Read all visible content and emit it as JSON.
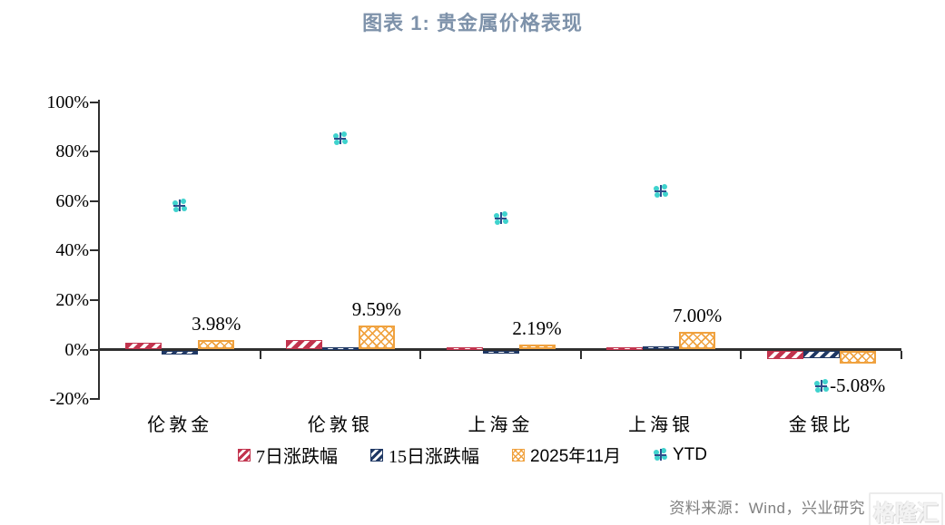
{
  "title": "图表 1:  贵金属价格表现",
  "source": {
    "text": "资料来源：Wind，兴业研究"
  },
  "watermark": {
    "text": "格隆汇"
  },
  "colors": {
    "title": "#7e92aa",
    "series_7d": "#c2344e",
    "series_15d": "#1f3864",
    "series_nov": "#f0a23f",
    "series_ytd": "#3fd2cd",
    "axis": "#2f2f2f",
    "source_text": "#808080"
  },
  "chart_data": {
    "type": "bar",
    "title": "图表 1:  贵金属价格表现",
    "categories": [
      "伦敦金",
      "伦敦银",
      "上海金",
      "上海银",
      "金银比"
    ],
    "series": [
      {
        "name": "7日涨跌幅",
        "type": "bar",
        "pattern": "diagonal-hatch",
        "color": "#c2344e",
        "values": [
          2.7,
          3.8,
          0.8,
          0.5,
          -3.3
        ]
      },
      {
        "name": "15日涨跌幅",
        "type": "bar",
        "pattern": "diagonal-hatch",
        "color": "#1f3864",
        "values": [
          -1.6,
          0.4,
          -1.2,
          1.2,
          -2.8
        ]
      },
      {
        "name": "2025年11月",
        "type": "bar",
        "pattern": "crosshatch",
        "color": "#f0a23f",
        "values": [
          3.98,
          9.59,
          2.19,
          7.0,
          -5.08
        ],
        "labels": [
          "3.98%",
          "9.59%",
          "2.19%",
          "7.00%",
          "-5.08%"
        ]
      },
      {
        "name": "YTD",
        "type": "scatter",
        "pattern": "clover-marker",
        "color": "#3fd2cd",
        "values": [
          58,
          85,
          53,
          64,
          -15
        ]
      }
    ],
    "ylim": [
      -20,
      100
    ],
    "yticks": [
      {
        "label": "100%",
        "value": 100
      },
      {
        "label": "80%",
        "value": 80
      },
      {
        "label": "60%",
        "value": 60
      },
      {
        "label": "40%",
        "value": 40
      },
      {
        "label": "20%",
        "value": 20
      },
      {
        "label": "0%",
        "value": 0
      },
      {
        "label": "-20%",
        "value": -20
      }
    ],
    "grid": false,
    "legend_position": "bottom",
    "data_labels_series": "2025年11月"
  }
}
